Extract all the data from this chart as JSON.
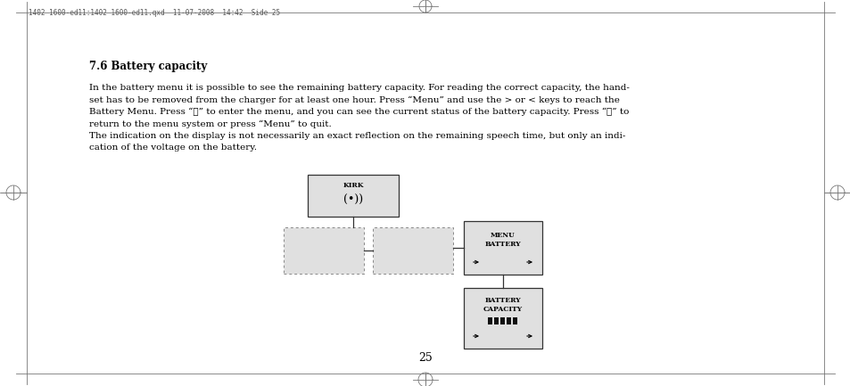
{
  "page_header": "1402 1600-ed11:1402 1600-ed11.qxd  11-07-2008  14:42  Side 25",
  "section_title": "7.6 Battery capacity",
  "body_text_para1": [
    "In the battery menu it is possible to see the remaining battery capacity. For reading the correct capacity, the hand-",
    "set has to be removed from the charger for at least one hour. Press “Menu” and use the > or < keys to reach the",
    "Battery Menu. Press “✓” to enter the menu, and you can see the current status of the battery capacity. Press “✓” to",
    "return to the menu system or press “Menu” to quit."
  ],
  "body_text_para2_line1": "The indication on the display is not necessarily an exact reflection on the remaining speech time, but only an indi-",
  "body_text_para2_line2": "cation of the voltage on the battery.",
  "page_number": "25",
  "bg_color": "#ffffff",
  "text_color": "#000000",
  "border_color": "#555555",
  "header_color": "#444444"
}
